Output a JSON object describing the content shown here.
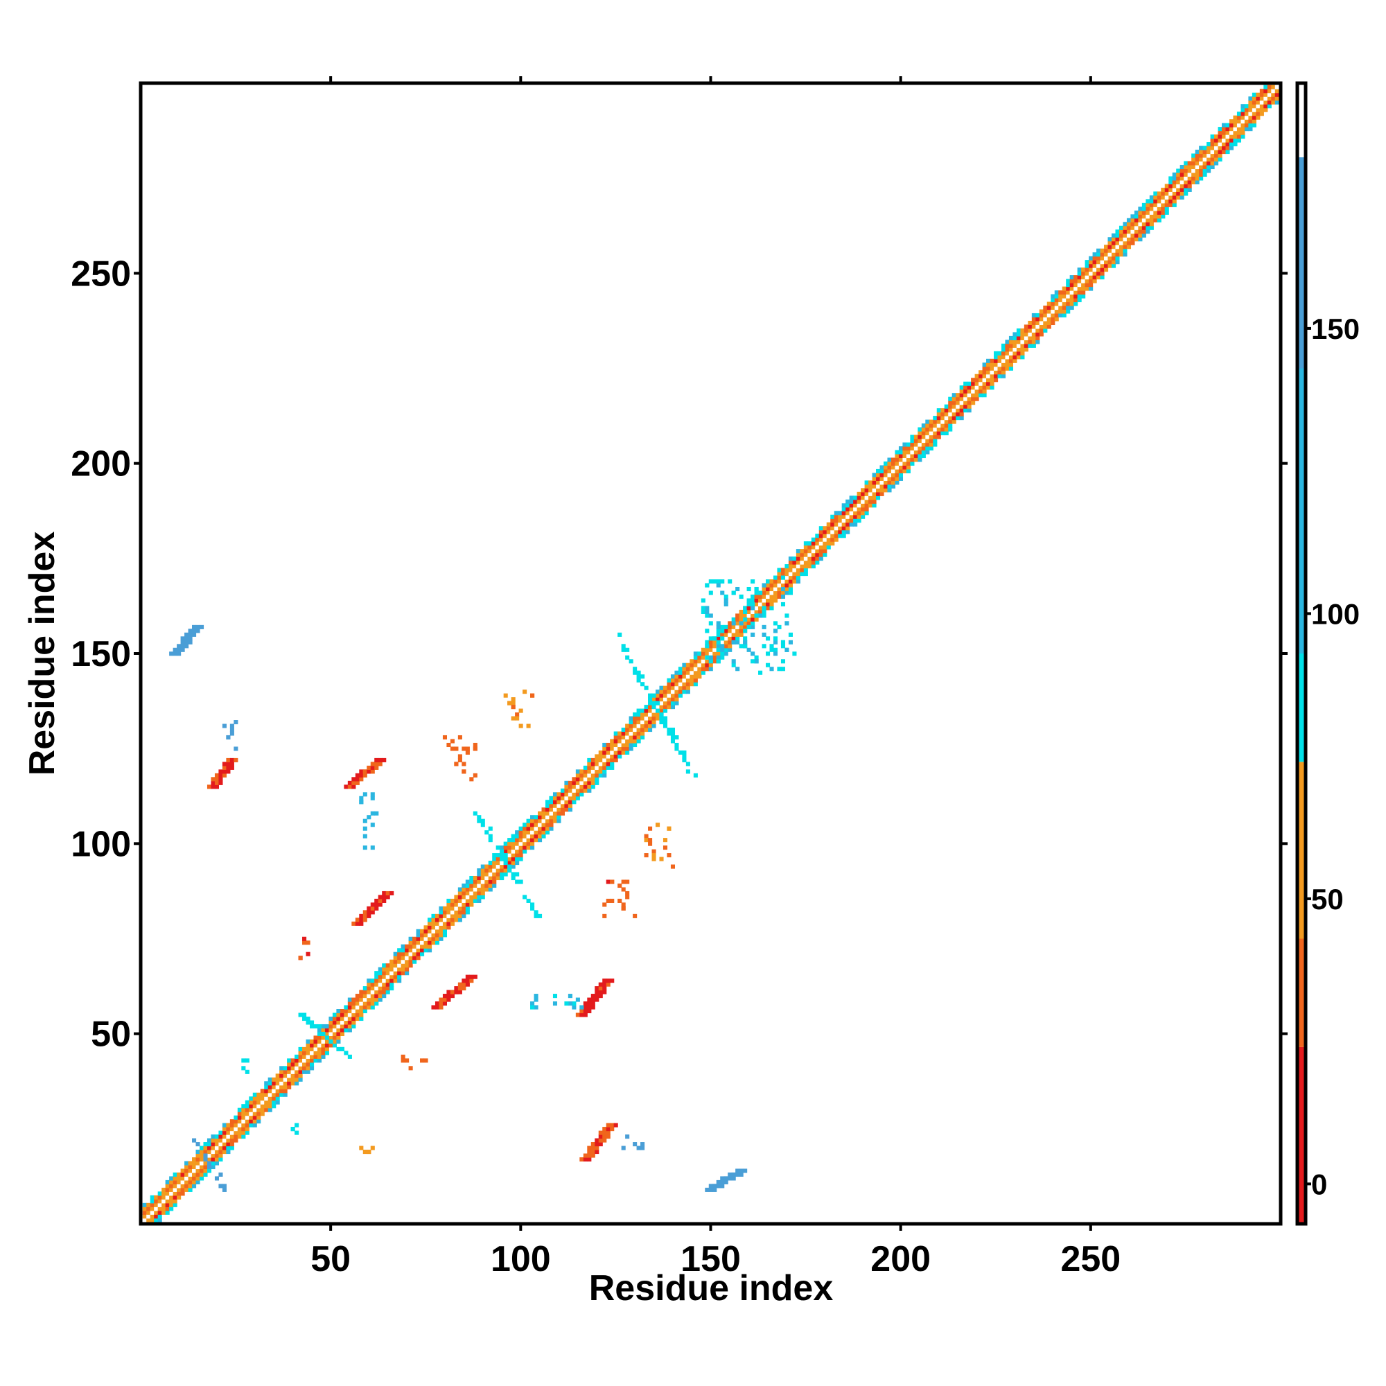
{
  "chart_data": {
    "type": "heatmap",
    "title": "",
    "xlabel": "Residue index",
    "ylabel": "Residue index",
    "xlim": [
      0,
      300
    ],
    "ylim": [
      0,
      300
    ],
    "x_ticks": [
      50,
      100,
      150,
      200,
      250
    ],
    "y_ticks": [
      50,
      100,
      150,
      200,
      250
    ],
    "colorbar": {
      "ticks": [
        0,
        50,
        100,
        150
      ],
      "range": [
        -7,
        193
      ],
      "bands": [
        {
          "from": -7,
          "to": 24,
          "color": "#e31a1c"
        },
        {
          "from": 24,
          "to": 43,
          "color": "#f0651c"
        },
        {
          "from": 43,
          "to": 74,
          "color": "#f39a1f"
        },
        {
          "from": 74,
          "to": 93,
          "color": "#00e0e8"
        },
        {
          "from": 93,
          "to": 143,
          "color": "#2bb6e0"
        },
        {
          "from": 143,
          "to": 180,
          "color": "#4a9ed6"
        },
        {
          "from": 180,
          "to": 193,
          "color": "#ffffff"
        }
      ]
    },
    "diagonal": {
      "from": 1,
      "to": 299
    },
    "contact_regions": [
      {
        "x": [
          14,
          22
        ],
        "y": [
          9,
          22
        ],
        "value": 160,
        "shape": "anti-diagonal"
      },
      {
        "x": [
          117,
          124
        ],
        "y": [
          17,
          26
        ],
        "value": 30,
        "shape": "parallel"
      },
      {
        "x": [
          125,
          132
        ],
        "y": [
          20,
          23
        ],
        "value": 150,
        "shape": "points"
      },
      {
        "x": [
          150,
          158
        ],
        "y": [
          9,
          14
        ],
        "value": 160,
        "shape": "parallel"
      },
      {
        "x": [
          57,
          63
        ],
        "y": [
          18,
          21
        ],
        "value": 50,
        "shape": "points"
      },
      {
        "x": [
          26,
          29
        ],
        "y": [
          39,
          43
        ],
        "value": 85,
        "shape": "points"
      },
      {
        "x": [
          40,
          42
        ],
        "y": [
          24,
          27
        ],
        "value": 85,
        "shape": "points"
      },
      {
        "x": [
          69,
          76
        ],
        "y": [
          41,
          44
        ],
        "value": 35,
        "shape": "points"
      },
      {
        "x": [
          78,
          87
        ],
        "y": [
          57,
          65
        ],
        "value": 20,
        "shape": "parallel"
      },
      {
        "x": [
          116,
          123
        ],
        "y": [
          55,
          64
        ],
        "value": 15,
        "shape": "parallel"
      },
      {
        "x": [
          102,
          116
        ],
        "y": [
          57,
          61
        ],
        "value": 90,
        "shape": "points"
      },
      {
        "x": [
          57,
          65
        ],
        "y": [
          79,
          87
        ],
        "value": 20,
        "shape": "parallel"
      },
      {
        "x": [
          41,
          44
        ],
        "y": [
          68,
          75
        ],
        "value": 25,
        "shape": "points"
      },
      {
        "x": [
          19,
          24
        ],
        "y": [
          115,
          122
        ],
        "value": 20,
        "shape": "parallel"
      },
      {
        "x": [
          22,
          25
        ],
        "y": [
          122,
          132
        ],
        "value": 150,
        "shape": "points"
      },
      {
        "x": [
          55,
          63
        ],
        "y": [
          115,
          122
        ],
        "value": 25,
        "shape": "parallel"
      },
      {
        "x": [
          58,
          62
        ],
        "y": [
          98,
          114
        ],
        "value": 110,
        "shape": "points"
      },
      {
        "x": [
          9,
          15
        ],
        "y": [
          150,
          157
        ],
        "value": 160,
        "shape": "parallel"
      },
      {
        "x": [
          96,
          103
        ],
        "y": [
          130,
          140
        ],
        "value": 45,
        "shape": "points"
      },
      {
        "x": [
          80,
          88
        ],
        "y": [
          117,
          129
        ],
        "value": 35,
        "shape": "points"
      },
      {
        "x": [
          133,
          140
        ],
        "y": [
          94,
          105
        ],
        "value": 40,
        "shape": "points"
      },
      {
        "x": [
          122,
          130
        ],
        "y": [
          80,
          90
        ],
        "value": 30,
        "shape": "points"
      },
      {
        "x": [
          125,
          145
        ],
        "y": [
          118,
          155
        ],
        "value": 85,
        "shape": "anti-diagonal"
      },
      {
        "x": [
          87,
          105
        ],
        "y": [
          80,
          110
        ],
        "value": 85,
        "shape": "anti-diagonal"
      },
      {
        "x": [
          148,
          172
        ],
        "y": [
          145,
          170
        ],
        "value": 90,
        "shape": "points"
      },
      {
        "x": [
          42,
          56
        ],
        "y": [
          43,
          55
        ],
        "value": 85,
        "shape": "anti-diagonal"
      }
    ]
  }
}
